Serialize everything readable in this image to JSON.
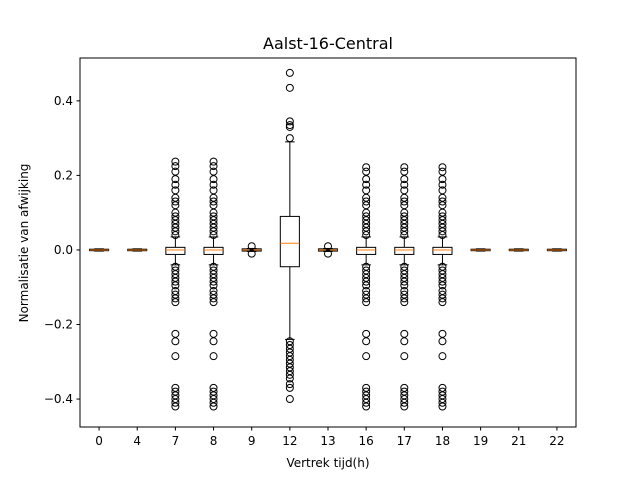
{
  "chart_data": {
    "type": "box",
    "title": "Aalst-16-Central",
    "xlabel": "Vertrek tijd(h)",
    "ylabel": "Normalisatie van afwijking",
    "ylim": [
      -0.475,
      0.515
    ],
    "yticks": [
      -0.4,
      -0.2,
      0.0,
      0.2,
      0.4
    ],
    "ytick_labels": [
      "−0.4",
      "−0.2",
      "0.0",
      "0.2",
      "0.4"
    ],
    "categories": [
      "0",
      "4",
      "7",
      "8",
      "9",
      "12",
      "13",
      "16",
      "17",
      "18",
      "19",
      "21",
      "22"
    ],
    "colors": {
      "box": "#000000",
      "median": "#ff7f0e",
      "flier": "#000000"
    },
    "boxes": [
      {
        "q1": -0.002,
        "median": 0.0,
        "q3": 0.002,
        "whislo": -0.003,
        "whishi": 0.003,
        "fliers": []
      },
      {
        "q1": -0.002,
        "median": 0.0,
        "q3": 0.002,
        "whislo": -0.003,
        "whishi": 0.003,
        "fliers": []
      },
      {
        "q1": -0.012,
        "median": 0.0,
        "q3": 0.007,
        "whislo": -0.04,
        "whishi": 0.035,
        "fliers": [
          0.237,
          0.225,
          0.21,
          0.19,
          0.175,
          0.16,
          0.14,
          0.13,
          0.12,
          0.1,
          0.09,
          0.08,
          0.07,
          0.06,
          0.05,
          0.04,
          -0.045,
          -0.055,
          -0.065,
          -0.075,
          -0.085,
          -0.095,
          -0.11,
          -0.12,
          -0.13,
          -0.14,
          -0.225,
          -0.245,
          -0.285,
          -0.37,
          -0.38,
          -0.39,
          -0.4,
          -0.41,
          -0.42
        ]
      },
      {
        "q1": -0.012,
        "median": 0.0,
        "q3": 0.007,
        "whislo": -0.04,
        "whishi": 0.035,
        "fliers": [
          0.237,
          0.225,
          0.21,
          0.19,
          0.175,
          0.16,
          0.14,
          0.13,
          0.12,
          0.1,
          0.09,
          0.08,
          0.07,
          0.06,
          0.05,
          0.04,
          -0.045,
          -0.055,
          -0.065,
          -0.075,
          -0.085,
          -0.095,
          -0.11,
          -0.12,
          -0.13,
          -0.14,
          -0.225,
          -0.245,
          -0.285,
          -0.37,
          -0.38,
          -0.39,
          -0.4,
          -0.41,
          -0.42
        ]
      },
      {
        "q1": -0.003,
        "median": 0.0,
        "q3": 0.003,
        "whislo": -0.004,
        "whishi": 0.004,
        "fliers": [
          0.01,
          -0.01
        ]
      },
      {
        "q1": -0.045,
        "median": 0.018,
        "q3": 0.09,
        "whislo": -0.24,
        "whishi": 0.29,
        "fliers": [
          0.475,
          0.435,
          0.345,
          0.335,
          0.33,
          0.3,
          -0.245,
          -0.255,
          -0.265,
          -0.275,
          -0.285,
          -0.295,
          -0.305,
          -0.315,
          -0.325,
          -0.335,
          -0.345,
          -0.36,
          -0.37,
          -0.4
        ]
      },
      {
        "q1": -0.003,
        "median": 0.0,
        "q3": 0.003,
        "whislo": -0.004,
        "whishi": 0.004,
        "fliers": [
          0.01,
          -0.01
        ]
      },
      {
        "q1": -0.012,
        "median": 0.0,
        "q3": 0.007,
        "whislo": -0.04,
        "whishi": 0.035,
        "fliers": [
          0.222,
          0.21,
          0.19,
          0.175,
          0.16,
          0.14,
          0.13,
          0.12,
          0.1,
          0.09,
          0.08,
          0.07,
          0.06,
          0.05,
          0.04,
          -0.045,
          -0.055,
          -0.065,
          -0.075,
          -0.085,
          -0.095,
          -0.11,
          -0.12,
          -0.13,
          -0.14,
          -0.225,
          -0.245,
          -0.285,
          -0.37,
          -0.38,
          -0.39,
          -0.4,
          -0.41,
          -0.42
        ]
      },
      {
        "q1": -0.012,
        "median": 0.0,
        "q3": 0.007,
        "whislo": -0.04,
        "whishi": 0.035,
        "fliers": [
          0.222,
          0.21,
          0.19,
          0.175,
          0.16,
          0.14,
          0.13,
          0.12,
          0.1,
          0.09,
          0.08,
          0.07,
          0.06,
          0.05,
          0.04,
          -0.045,
          -0.055,
          -0.065,
          -0.075,
          -0.085,
          -0.095,
          -0.11,
          -0.12,
          -0.13,
          -0.14,
          -0.225,
          -0.245,
          -0.285,
          -0.37,
          -0.38,
          -0.39,
          -0.4,
          -0.41,
          -0.42
        ]
      },
      {
        "q1": -0.012,
        "median": 0.0,
        "q3": 0.007,
        "whislo": -0.04,
        "whishi": 0.035,
        "fliers": [
          0.222,
          0.21,
          0.19,
          0.175,
          0.16,
          0.14,
          0.13,
          0.12,
          0.1,
          0.09,
          0.08,
          0.07,
          0.06,
          0.05,
          0.04,
          -0.045,
          -0.055,
          -0.065,
          -0.075,
          -0.085,
          -0.095,
          -0.11,
          -0.12,
          -0.13,
          -0.14,
          -0.225,
          -0.245,
          -0.285,
          -0.37,
          -0.38,
          -0.39,
          -0.4,
          -0.41,
          -0.42
        ]
      },
      {
        "q1": -0.002,
        "median": 0.0,
        "q3": 0.002,
        "whislo": -0.003,
        "whishi": 0.003,
        "fliers": []
      },
      {
        "q1": -0.002,
        "median": 0.0,
        "q3": 0.002,
        "whislo": -0.003,
        "whishi": 0.003,
        "fliers": []
      },
      {
        "q1": -0.002,
        "median": 0.0,
        "q3": 0.002,
        "whislo": -0.003,
        "whishi": 0.003,
        "fliers": []
      }
    ]
  }
}
